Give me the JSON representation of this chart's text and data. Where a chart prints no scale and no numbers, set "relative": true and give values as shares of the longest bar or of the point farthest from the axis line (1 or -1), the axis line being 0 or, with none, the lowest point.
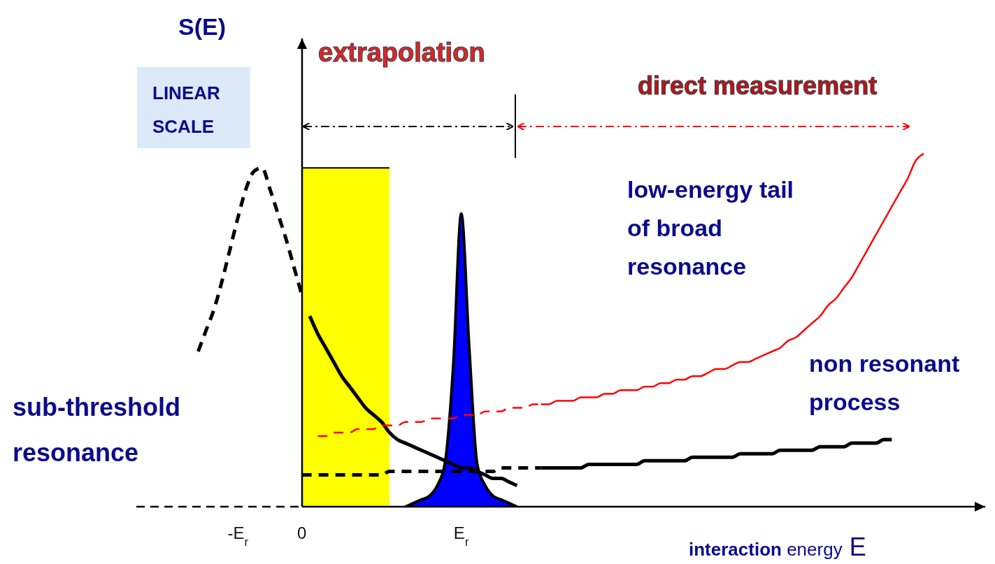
{
  "chart_data": {
    "type": "line",
    "relative": true,
    "ylabel": "S(E)",
    "xlabel": "interaction energy E",
    "categories": [
      null,
      null,
      null,
      null,
      null,
      null,
      "-E$_{r}$",
      null,
      null,
      null,
      null,
      null,
      null,
      null,
      "0",
      null,
      null,
      null,
      null,
      null,
      null,
      null,
      null,
      null,
      null,
      null,
      null,
      null,
      null,
      null,
      null,
      null,
      null,
      null,
      "E$_{r}$",
      null,
      null,
      null,
      null,
      null,
      null,
      null,
      null,
      null,
      null,
      null,
      null,
      null,
      null,
      null,
      null,
      null,
      null,
      null,
      null,
      null,
      null,
      null,
      null,
      null,
      null,
      null,
      null,
      null,
      null,
      null,
      null,
      null,
      null,
      null,
      null,
      null,
      null,
      null,
      null,
      null,
      null,
      null,
      null,
      null,
      null,
      null,
      null,
      null,
      null,
      null,
      null,
      null,
      null,
      null,
      null,
      null,
      null
    ],
    "grid": false,
    "series": [
      {
        "color": "#000000",
        "line_style": "dashed",
        "values": [
          null,
          0.44,
          0.5,
          0.56,
          0.64,
          0.73,
          0.82,
          0.9,
          0.95,
          0.96,
          0.9,
          0.83,
          0.76,
          0.68,
          0.6,
          null,
          null,
          null,
          null,
          null,
          null,
          null,
          null,
          null,
          null,
          null,
          null,
          null,
          null,
          null,
          null,
          null,
          null,
          null,
          null,
          null,
          null,
          null,
          null,
          null,
          null,
          null,
          null,
          null,
          null,
          null,
          null,
          null,
          null,
          null,
          null,
          null,
          null,
          null,
          null,
          null,
          null,
          null,
          null,
          null,
          null,
          null,
          null,
          null,
          null,
          null,
          null,
          null,
          null,
          null,
          null,
          null,
          null,
          null,
          null,
          null,
          null,
          null,
          null,
          null,
          null,
          null,
          null,
          null,
          null,
          null,
          null,
          null,
          null,
          null,
          null,
          null,
          null
        ]
      },
      {
        "type": "area",
        "color": "#ffff00",
        "values": [
          null,
          null,
          null,
          null,
          null,
          null,
          null,
          null,
          null,
          null,
          null,
          null,
          null,
          null,
          0.96,
          0.96,
          0.96,
          0.96,
          0.96,
          0.96,
          0.96,
          0.96,
          0.96,
          0.96,
          0.96,
          0.96,
          null,
          null,
          null,
          null,
          null,
          null,
          null,
          null,
          null,
          null,
          null,
          null,
          null,
          null,
          null,
          null,
          null,
          null,
          null,
          null,
          null,
          null,
          null,
          null,
          null,
          null,
          null,
          null,
          null,
          null,
          null,
          null,
          null,
          null,
          null,
          null,
          null,
          null,
          null,
          null,
          null,
          null,
          null,
          null,
          null,
          null,
          null,
          null,
          null,
          null,
          null,
          null,
          null,
          null,
          null,
          null,
          null,
          null,
          null,
          null,
          null,
          null,
          null,
          null,
          null,
          null,
          null
        ]
      },
      {
        "color": "#000000",
        "line_style": "solid",
        "values": [
          null,
          null,
          null,
          null,
          null,
          null,
          null,
          null,
          null,
          null,
          null,
          null,
          null,
          null,
          null,
          0.54,
          0.49,
          0.45,
          0.41,
          0.37,
          0.34,
          0.31,
          0.28,
          0.26,
          0.24,
          0.21,
          0.19,
          0.18,
          0.17,
          0.16,
          0.15,
          0.14,
          0.13,
          0.12,
          0.11,
          0.11,
          0.1,
          0.09,
          0.08,
          0.08,
          0.07,
          0.06,
          null,
          null,
          null,
          null,
          null,
          null,
          null,
          null,
          null,
          null,
          null,
          null,
          null,
          null,
          null,
          null,
          null,
          null,
          null,
          null,
          null,
          null,
          null,
          null,
          null,
          null,
          null,
          null,
          null,
          null,
          null,
          null,
          null,
          null,
          null,
          null,
          null,
          null,
          null,
          null,
          null,
          null,
          null,
          null,
          null,
          null,
          null,
          null,
          null,
          null,
          null
        ]
      },
      {
        "type": "area",
        "color": "#0000ff",
        "values": [
          null,
          null,
          null,
          null,
          null,
          null,
          null,
          null,
          null,
          null,
          null,
          null,
          null,
          null,
          null,
          null,
          null,
          null,
          null,
          null,
          null,
          null,
          null,
          null,
          null,
          null,
          null,
          0,
          0.01,
          0.02,
          0.03,
          0.06,
          0.13,
          0.4,
          0.83,
          0.45,
          0.12,
          0.06,
          0.03,
          0.02,
          0.01,
          0,
          null,
          null,
          null,
          null,
          null,
          null,
          null,
          null,
          null,
          null,
          null,
          null,
          null,
          null,
          null,
          null,
          null,
          null,
          null,
          null,
          null,
          null,
          null,
          null,
          null,
          null,
          null,
          null,
          null,
          null,
          null,
          null,
          null,
          null,
          null,
          null,
          null,
          null,
          null,
          null,
          null,
          null,
          null,
          null,
          null,
          null,
          null,
          null,
          null,
          null,
          null
        ]
      },
      {
        "color": "#ff0000",
        "line_style": "dashed",
        "values": [
          null,
          null,
          null,
          null,
          null,
          null,
          null,
          null,
          null,
          null,
          null,
          null,
          null,
          null,
          null,
          null,
          0.2,
          0.2,
          0.21,
          0.21,
          0.21,
          0.22,
          0.22,
          0.22,
          0.23,
          0.23,
          0.23,
          0.24,
          0.24,
          0.24,
          0.25,
          0.25,
          0.25,
          0.25,
          0.26,
          0.26,
          0.26,
          0.27,
          0.27,
          0.27,
          0.28,
          0.28,
          0.28,
          0.29,
          0.29,
          null,
          null,
          null,
          null,
          null,
          null,
          null,
          null,
          null,
          null,
          null,
          null,
          null,
          null,
          null,
          null,
          null,
          null,
          null,
          null,
          null,
          null,
          null,
          null,
          null,
          null,
          null,
          null,
          null,
          null,
          null,
          null,
          null,
          null,
          null,
          null,
          null,
          null,
          null,
          null,
          null,
          null,
          null,
          null,
          null,
          null,
          null,
          null
        ]
      },
      {
        "color": "#ff0000",
        "line_style": "solid",
        "values": [
          null,
          null,
          null,
          null,
          null,
          null,
          null,
          null,
          null,
          null,
          null,
          null,
          null,
          null,
          null,
          null,
          null,
          null,
          null,
          null,
          null,
          null,
          null,
          null,
          null,
          null,
          null,
          null,
          null,
          null,
          null,
          null,
          null,
          null,
          null,
          null,
          null,
          null,
          null,
          null,
          null,
          null,
          null,
          null,
          0.29,
          0.29,
          0.3,
          0.3,
          0.3,
          0.31,
          0.31,
          0.31,
          0.32,
          0.32,
          0.33,
          0.33,
          0.33,
          0.34,
          0.34,
          0.35,
          0.35,
          0.36,
          0.36,
          0.37,
          0.37,
          0.38,
          0.39,
          0.39,
          0.4,
          0.41,
          0.41,
          0.42,
          0.43,
          0.44,
          0.45,
          0.47,
          0.48,
          0.5,
          0.52,
          0.54,
          0.57,
          0.59,
          0.62,
          0.65,
          0.69,
          0.73,
          0.77,
          0.81,
          0.85,
          0.89,
          0.93,
          0.98,
          1
        ]
      },
      {
        "color": "#000000",
        "line_style": "dashed",
        "values": [
          null,
          null,
          null,
          null,
          null,
          null,
          null,
          null,
          null,
          null,
          null,
          null,
          null,
          null,
          0.09,
          0.09,
          0.09,
          0.09,
          0.09,
          0.09,
          0.09,
          0.09,
          0.09,
          0.09,
          0.09,
          0.1,
          0.1,
          0.1,
          0.1,
          0.1,
          0.1,
          0.1,
          0.1,
          0.1,
          0.1,
          0.1,
          0.1,
          0.1,
          0.1,
          0.11,
          0.11,
          0.11,
          0.11,
          0.11,
          0.11,
          null,
          null,
          null,
          null,
          null,
          null,
          null,
          null,
          null,
          null,
          null,
          null,
          null,
          null,
          null,
          null,
          null,
          null,
          null,
          null,
          null,
          null,
          null,
          null,
          null,
          null,
          null,
          null,
          null,
          null,
          null,
          null,
          null,
          null,
          null,
          null,
          null,
          null,
          null,
          null,
          null,
          null,
          null,
          null,
          null,
          null,
          null,
          null
        ]
      },
      {
        "color": "#000000",
        "line_style": "solid",
        "values": [
          null,
          null,
          null,
          null,
          null,
          null,
          null,
          null,
          null,
          null,
          null,
          null,
          null,
          null,
          null,
          null,
          null,
          null,
          null,
          null,
          null,
          null,
          null,
          null,
          null,
          null,
          null,
          null,
          null,
          null,
          null,
          null,
          null,
          null,
          null,
          null,
          null,
          null,
          null,
          null,
          null,
          null,
          null,
          null,
          0.11,
          0.11,
          0.11,
          0.11,
          0.11,
          0.11,
          0.12,
          0.12,
          0.12,
          0.12,
          0.12,
          0.12,
          0.12,
          0.13,
          0.13,
          0.13,
          0.13,
          0.13,
          0.13,
          0.14,
          0.14,
          0.14,
          0.14,
          0.14,
          0.14,
          0.15,
          0.15,
          0.15,
          0.15,
          0.15,
          0.16,
          0.16,
          0.16,
          0.16,
          0.16,
          0.17,
          0.17,
          0.17,
          0.17,
          0.18,
          0.18,
          0.18,
          0.18,
          0.19,
          0.19,
          null,
          null,
          null,
          null
        ]
      }
    ],
    "annotations": [
      "extrapolation",
      "direct measurement",
      "LINEAR SCALE",
      "low-energy tail of broad resonance",
      "non resonant process",
      "sub-threshold resonance"
    ]
  }
}
